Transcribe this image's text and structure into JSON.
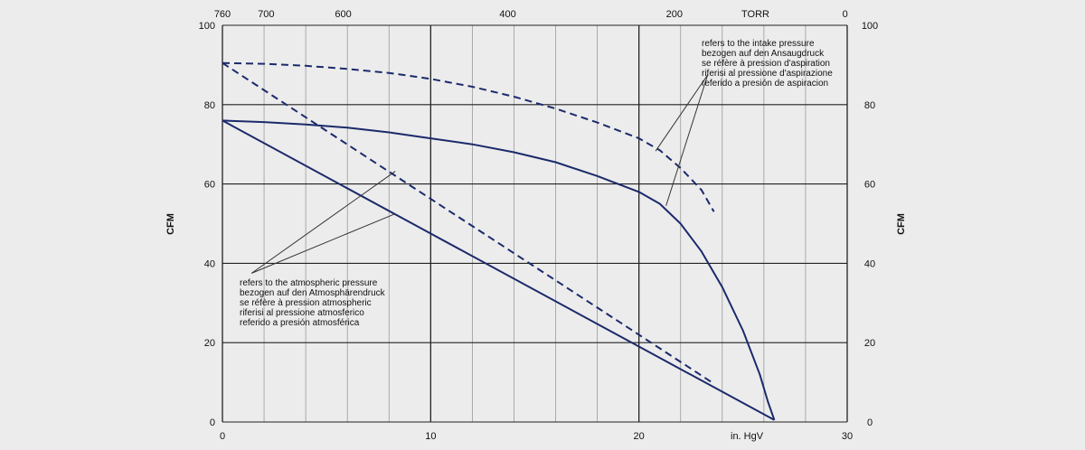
{
  "chart_data": {
    "type": "line",
    "xlabel": "in. HgV",
    "ylabel_left": "CFM",
    "ylabel_right": "CFM",
    "xlim": [
      0,
      30
    ],
    "ylim": [
      0,
      100
    ],
    "x_ticks": [
      "0",
      "10",
      "20",
      "30"
    ],
    "y_ticks": [
      "0",
      "20",
      "40",
      "60",
      "80",
      "100"
    ],
    "top_axis": {
      "label": "TORR",
      "ticks": [
        {
          "label": "760",
          "x": 0
        },
        {
          "label": "700",
          "x": 2.1
        },
        {
          "label": "600",
          "x": 5.8
        },
        {
          "label": "400",
          "x": 13.7
        },
        {
          "label": "200",
          "x": 21.7
        },
        {
          "label": "0",
          "x": 29.9
        }
      ]
    },
    "grid": true,
    "series": [
      {
        "style": "solid",
        "points": [
          [
            0,
            76
          ],
          [
            2,
            75.6
          ],
          [
            4,
            75
          ],
          [
            6,
            74.2
          ],
          [
            8,
            73
          ],
          [
            10,
            71.5
          ],
          [
            12,
            70
          ],
          [
            14,
            68
          ],
          [
            16,
            65.5
          ],
          [
            18,
            62
          ],
          [
            20,
            58
          ],
          [
            21,
            55
          ],
          [
            22,
            50
          ],
          [
            23,
            43
          ],
          [
            24,
            34
          ],
          [
            25,
            23
          ],
          [
            25.8,
            12
          ],
          [
            26.2,
            5
          ],
          [
            26.5,
            0.5
          ]
        ]
      },
      {
        "style": "dashed",
        "points": [
          [
            0,
            90.5
          ],
          [
            2,
            90.3
          ],
          [
            4,
            89.8
          ],
          [
            6,
            89
          ],
          [
            8,
            88
          ],
          [
            10,
            86.5
          ],
          [
            12,
            84.5
          ],
          [
            14,
            82
          ],
          [
            16,
            79
          ],
          [
            18,
            75.5
          ],
          [
            20,
            71.5
          ],
          [
            21,
            68.5
          ],
          [
            22,
            64
          ],
          [
            23,
            58.5
          ],
          [
            23.6,
            53
          ]
        ]
      },
      {
        "style": "solid",
        "points": [
          [
            0,
            76
          ],
          [
            26.5,
            0.5
          ]
        ]
      },
      {
        "style": "dashed",
        "points": [
          [
            0,
            90.5
          ],
          [
            23.5,
            10
          ]
        ]
      }
    ],
    "annotations": [
      {
        "lines": [
          "refers to the intake pressure",
          "bezogen auf den Ansaugdruck",
          "se réfère à pression d'aspiration",
          "riferisi al pressione d'aspirazione",
          "referido a presión de aspiracion"
        ]
      },
      {
        "lines": [
          "refers to the atmospheric pressure",
          "bezogen auf den Atmosphärendruck",
          "se réfère à pression atmospheric",
          "riferisi al pressione atmosferico",
          "referido a presión atmosférica"
        ]
      }
    ],
    "colors": {
      "curve": "#1b2a6b",
      "grid": "#222222",
      "grid_minor": "#9a9a9a",
      "background": "#ececec",
      "leader": "#333333"
    }
  }
}
